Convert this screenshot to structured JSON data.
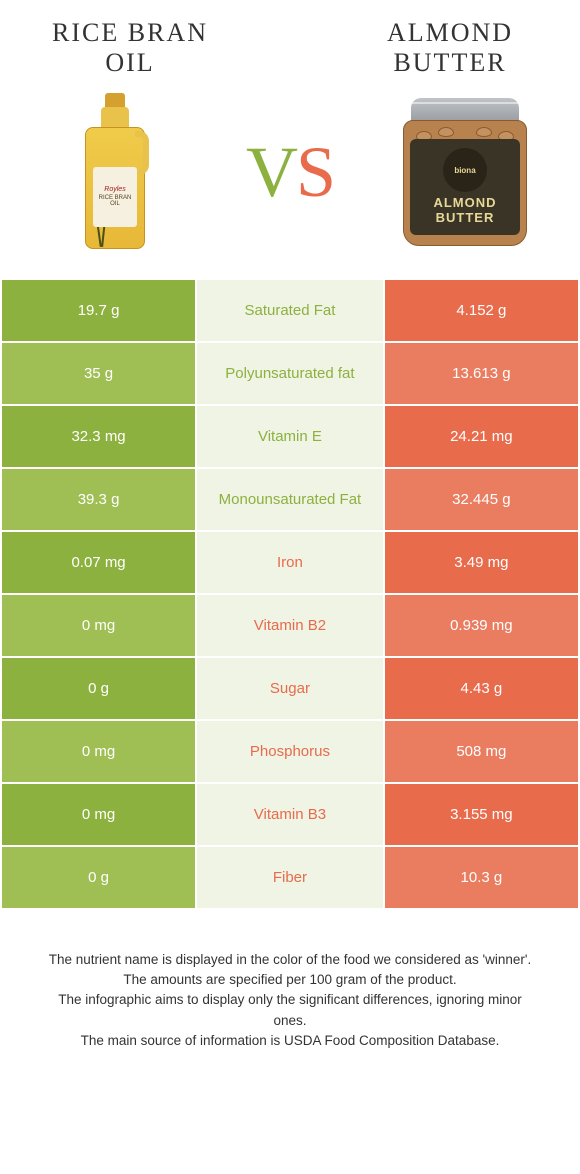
{
  "left_title": "RICE BRAN OIL",
  "right_title": "ALMOND BUTTER",
  "vs_v": "V",
  "vs_s": "S",
  "colors": {
    "left_dark": "#8db13f",
    "left_light": "#9fbf55",
    "mid": "#eff4e4",
    "right_dark": "#e86b4c",
    "right_light": "#ea7c60",
    "lbl_left": "#e86b4c",
    "lbl_right": "#8db13f"
  },
  "rows": [
    {
      "left": "19.7 g",
      "label": "Saturated Fat",
      "right": "4.152 g",
      "winner": "left"
    },
    {
      "left": "35 g",
      "label": "Polyunsaturated fat",
      "right": "13.613 g",
      "winner": "left"
    },
    {
      "left": "32.3 mg",
      "label": "Vitamin E",
      "right": "24.21 mg",
      "winner": "left"
    },
    {
      "left": "39.3 g",
      "label": "Monounsaturated Fat",
      "right": "32.445 g",
      "winner": "left"
    },
    {
      "left": "0.07 mg",
      "label": "Iron",
      "right": "3.49 mg",
      "winner": "right"
    },
    {
      "left": "0 mg",
      "label": "Vitamin B2",
      "right": "0.939 mg",
      "winner": "right"
    },
    {
      "left": "0 g",
      "label": "Sugar",
      "right": "4.43 g",
      "winner": "right"
    },
    {
      "left": "0 mg",
      "label": "Phosphorus",
      "right": "508 mg",
      "winner": "right"
    },
    {
      "left": "0 mg",
      "label": "Vitamin B3",
      "right": "3.155 mg",
      "winner": "right"
    },
    {
      "left": "0 g",
      "label": "Fiber",
      "right": "10.3 g",
      "winner": "right"
    }
  ],
  "footer": {
    "l1": "The nutrient name is displayed in the color of the food we considered as 'winner'.",
    "l2": "The amounts are specified per 100 gram of the product.",
    "l3": "The infographic aims to display only the significant differences, ignoring minor ones.",
    "l4": "The main source of information is USDA Food Composition Database."
  },
  "oil_label_brand": "Royles",
  "oil_label_name": "RICE BRAN OIL",
  "jar_brand": "biona",
  "jar_name_1": "ALMOND",
  "jar_name_2": "BUTTER"
}
